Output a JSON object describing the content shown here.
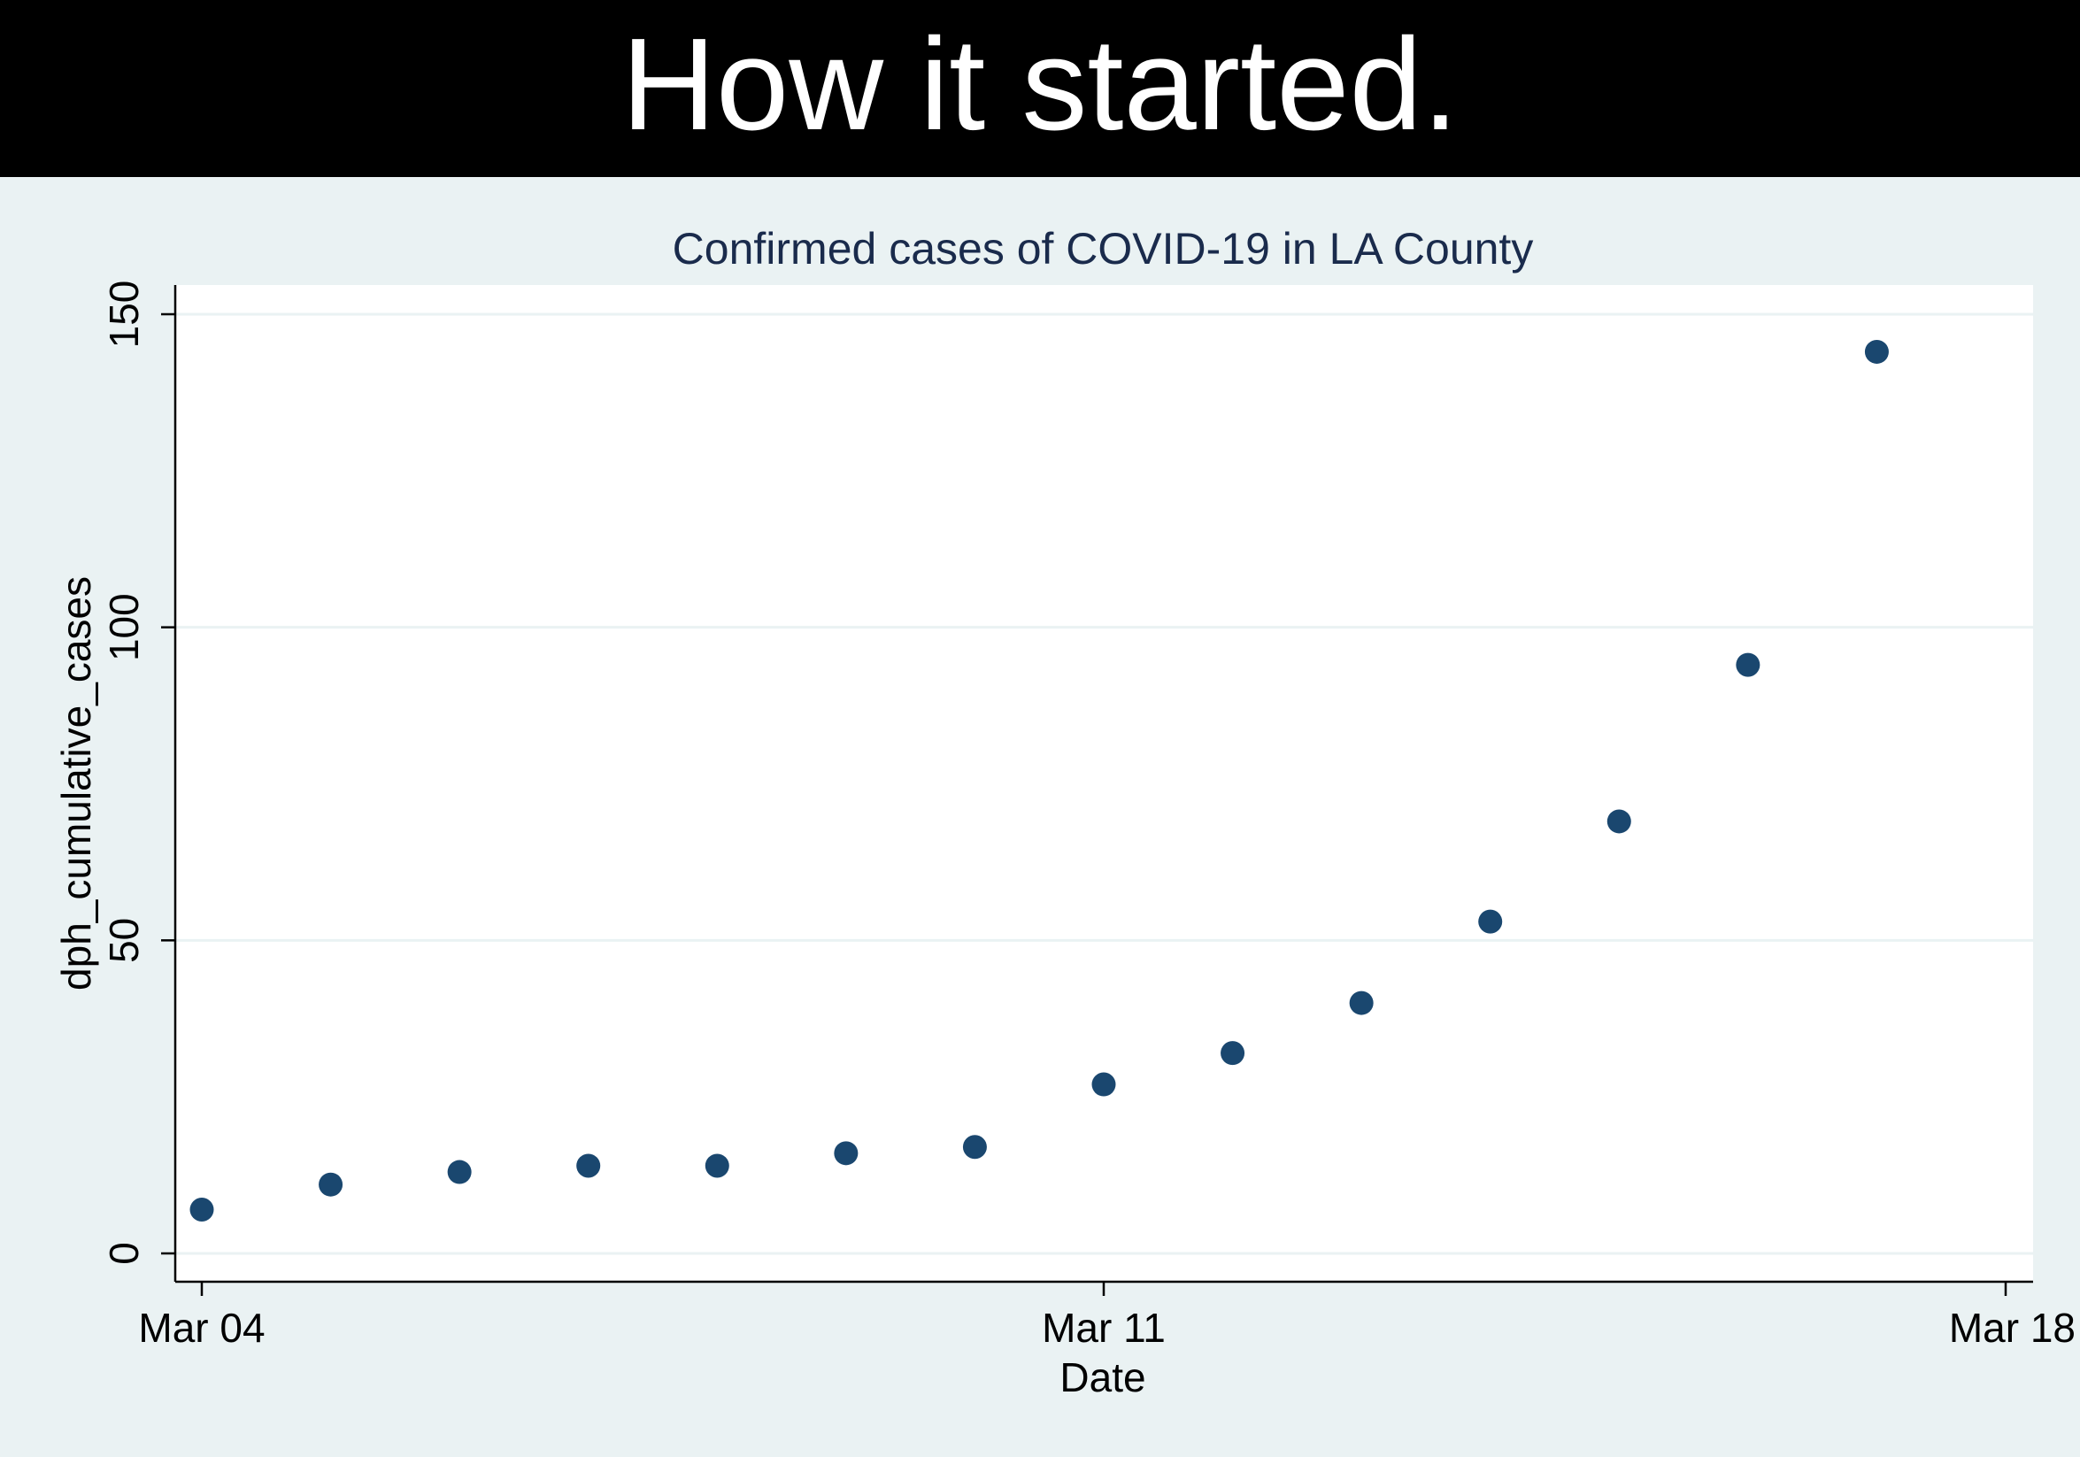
{
  "banner": {
    "text": "How it started."
  },
  "colors": {
    "banner_bg": "#000000",
    "banner_text": "#ffffff",
    "page_bg": "#eaf2f3",
    "plot_bg": "#ffffff",
    "gridline": "#eaf2f3",
    "marker": "#1a476f",
    "title": "#1a2b4c",
    "axis": "#000000"
  },
  "chart_data": {
    "type": "scatter",
    "title": "Confirmed cases of COVID-19 in LA County",
    "xlabel": "Date",
    "ylabel": "dph_cumulative_cases",
    "x_tick_labels": [
      "Mar 04",
      "Mar 11",
      "Mar 18"
    ],
    "x_ticks": [
      "2020-03-04",
      "2020-03-11",
      "2020-03-18"
    ],
    "y_ticks": [
      0,
      50,
      100,
      150
    ],
    "xlim": [
      "2020-03-04",
      "2020-03-18"
    ],
    "ylim": [
      0,
      150
    ],
    "grid": true,
    "legend": "none",
    "series": [
      {
        "x": [
          "2020-03-04",
          "2020-03-05",
          "2020-03-06",
          "2020-03-07",
          "2020-03-08",
          "2020-03-09",
          "2020-03-10",
          "2020-03-11",
          "2020-03-12",
          "2020-03-13",
          "2020-03-14",
          "2020-03-15",
          "2020-03-16",
          "2020-03-17"
        ],
        "y": [
          7,
          11,
          13,
          14,
          14,
          16,
          17,
          27,
          32,
          40,
          53,
          69,
          94,
          144
        ]
      }
    ]
  }
}
